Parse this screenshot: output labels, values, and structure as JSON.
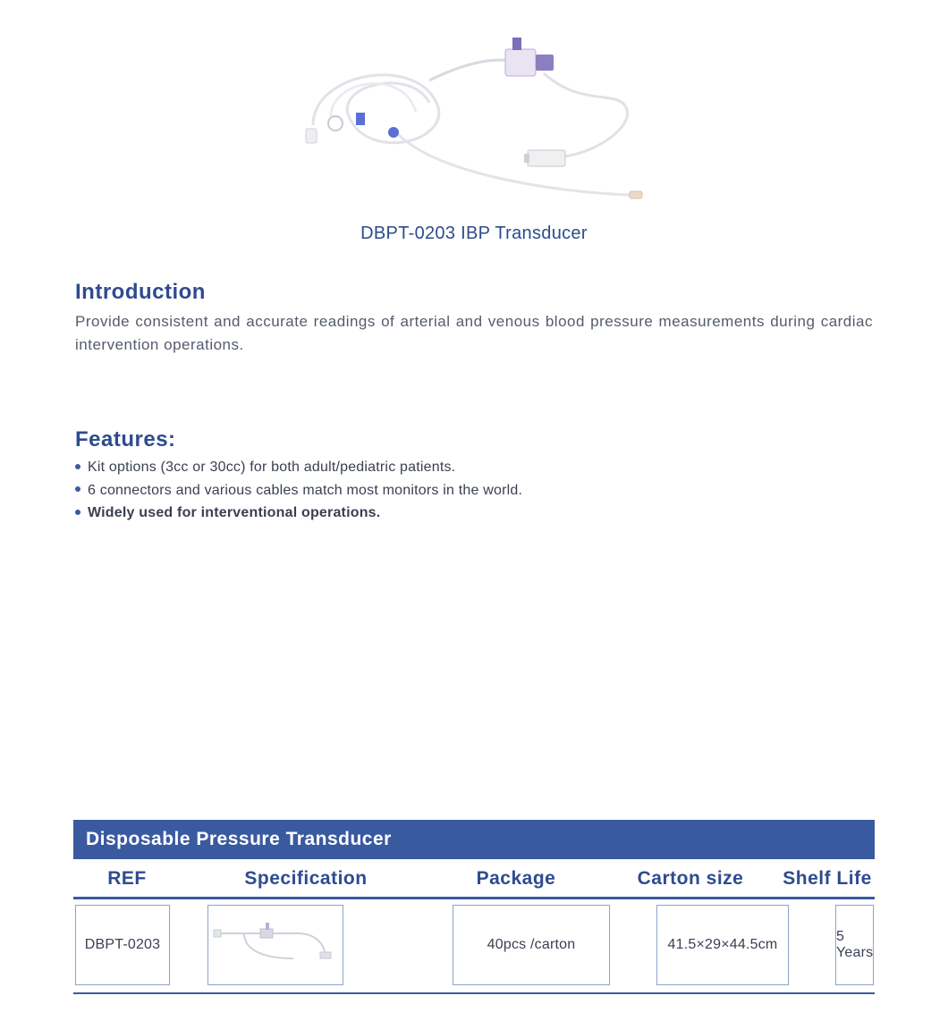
{
  "colors": {
    "primary": "#2e4b8f",
    "text": "#555b6e",
    "darktext": "#3a3f52",
    "header_bg": "#3a5aa0",
    "header_text": "#ffffff",
    "table_border": "#3a5aa0",
    "cell_border": "#8fa2c9",
    "bullet": "#3a5aa0",
    "tube_light": "#e6e8ec",
    "tube_accent": "#5b6fd6",
    "tube_purple": "#7a6fb8"
  },
  "product": {
    "title": "DBPT-0203 IBP Transducer"
  },
  "introduction": {
    "heading": "Introduction",
    "text": "Provide consistent and accurate readings of arterial and venous blood pressure measurements during cardiac intervention operations."
  },
  "features": {
    "heading": "Features:",
    "items": [
      {
        "text": "Kit options (3cc or 30cc) for both adult/pediatric patients.",
        "bold": false
      },
      {
        "text": "6 connectors and various cables match most monitors in the world.",
        "bold": false
      },
      {
        "text": "Widely used for interventional operations.",
        "bold": true
      }
    ]
  },
  "table": {
    "title": "Disposable Pressure Transducer",
    "columns": [
      "REF",
      "Specification",
      "Package",
      "Carton  size",
      "Shelf Life"
    ],
    "row": {
      "ref": "DBPT-0203",
      "package": "40pcs /carton",
      "carton_size": "41.5×29×44.5cm",
      "shelf_life": "5 Years"
    }
  }
}
